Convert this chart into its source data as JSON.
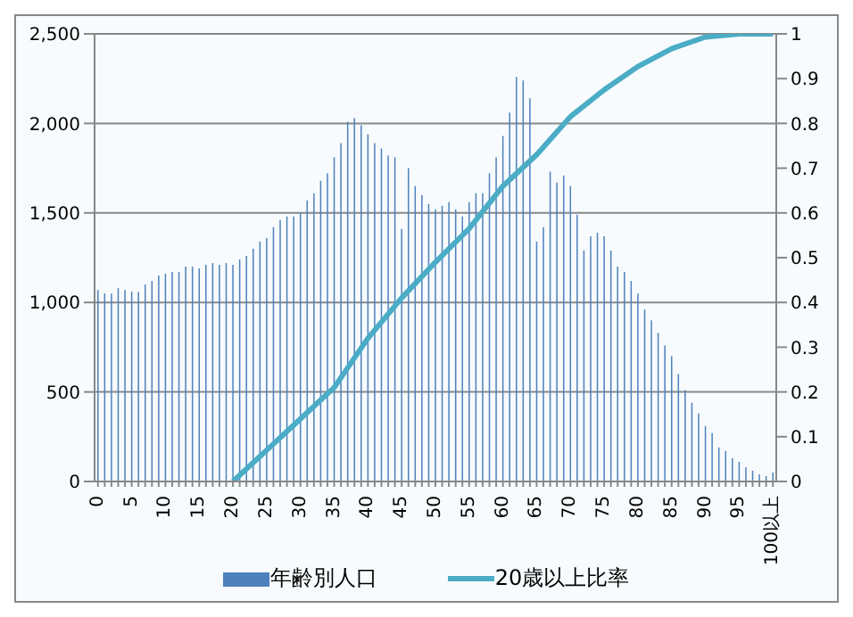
{
  "chart_data": {
    "type": "bar",
    "categories": [
      "0",
      null,
      null,
      null,
      null,
      "5",
      null,
      null,
      null,
      null,
      "10",
      null,
      null,
      null,
      null,
      "15",
      null,
      null,
      null,
      null,
      "20",
      null,
      null,
      null,
      null,
      "25",
      null,
      null,
      null,
      null,
      "30",
      null,
      null,
      null,
      null,
      "35",
      null,
      null,
      null,
      null,
      "40",
      null,
      null,
      null,
      null,
      "45",
      null,
      null,
      null,
      null,
      "50",
      null,
      null,
      null,
      null,
      "55",
      null,
      null,
      null,
      null,
      "60",
      null,
      null,
      null,
      null,
      "65",
      null,
      null,
      null,
      null,
      "70",
      null,
      null,
      null,
      null,
      "75",
      null,
      null,
      null,
      null,
      "80",
      null,
      null,
      null,
      null,
      "85",
      null,
      null,
      null,
      null,
      "90",
      null,
      null,
      null,
      null,
      "95",
      null,
      null,
      null,
      null,
      "100以上"
    ],
    "series": [
      {
        "name": "年齢別人口",
        "color": "#4f81bd",
        "values": [
          1070,
          1050,
          1050,
          1080,
          1070,
          1060,
          1060,
          1100,
          1120,
          1150,
          1160,
          1170,
          1170,
          1200,
          1200,
          1190,
          1210,
          1220,
          1210,
          1220,
          1210,
          1240,
          1260,
          1300,
          1340,
          1360,
          1420,
          1460,
          1480,
          1480,
          1500,
          1570,
          1610,
          1680,
          1720,
          1810,
          1890,
          2010,
          2030,
          1990,
          1940,
          1890,
          1860,
          1820,
          1810,
          1410,
          1750,
          1650,
          1600,
          1550,
          1520,
          1540,
          1560,
          1520,
          1480,
          1560,
          1610,
          1610,
          1720,
          1810,
          1930,
          2060,
          2260,
          2240,
          2140,
          1340,
          1420,
          1730,
          1670,
          1710,
          1650,
          1490,
          1290,
          1370,
          1390,
          1370,
          1290,
          1200,
          1170,
          1120,
          1050,
          960,
          900,
          830,
          760,
          700,
          600,
          510,
          440,
          380,
          310,
          270,
          190,
          170,
          130,
          110,
          80,
          60,
          40,
          30,
          50
        ]
      },
      {
        "name": "20歳以上比率",
        "type": "line",
        "axis": "y2",
        "color": "#4bacc6",
        "values": [
          null,
          null,
          null,
          null,
          null,
          null,
          null,
          null,
          null,
          null,
          null,
          null,
          null,
          null,
          null,
          null,
          null,
          null,
          null,
          null,
          0,
          null,
          null,
          null,
          null,
          0.07,
          null,
          null,
          null,
          null,
          0.14,
          null,
          null,
          null,
          null,
          0.21,
          null,
          null,
          null,
          null,
          0.32,
          null,
          null,
          null,
          null,
          0.41,
          null,
          null,
          null,
          null,
          0.49,
          null,
          null,
          null,
          null,
          0.565,
          null,
          null,
          null,
          null,
          0.66,
          null,
          null,
          null,
          null,
          0.73,
          null,
          null,
          null,
          null,
          0.815,
          null,
          null,
          null,
          null,
          0.875,
          null,
          null,
          null,
          null,
          0.927,
          null,
          null,
          null,
          null,
          0.967,
          null,
          null,
          null,
          null,
          0.993,
          null,
          null,
          null,
          null,
          1,
          null,
          null,
          null,
          null,
          1
        ]
      }
    ],
    "ylim": [
      0,
      2500
    ],
    "yticks": [
      0,
      500,
      {
        "value": 1000,
        "label": "1,000"
      },
      {
        "value": 1500,
        "label": "1,500"
      },
      {
        "value": 2000,
        "label": "2,000"
      },
      {
        "value": 2500,
        "label": "2,500"
      }
    ],
    "y2lim": [
      0,
      1
    ],
    "y2ticks": [
      0,
      0.1,
      0.2,
      0.3,
      0.4,
      0.5,
      0.6,
      0.7,
      0.8,
      0.9,
      1
    ],
    "grid": "y",
    "legend": "bottom",
    "marker": "none"
  }
}
